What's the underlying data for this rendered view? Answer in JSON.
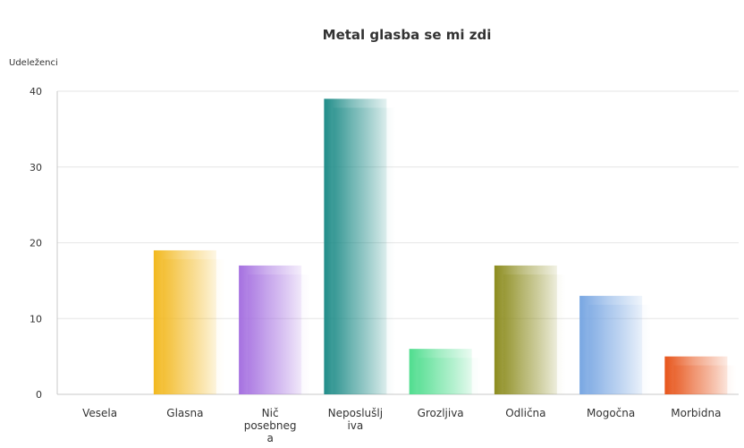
{
  "chart_data": {
    "type": "bar",
    "title": "Metal glasba se mi zdi",
    "ylabel": "Udeleženci",
    "xlabel": "",
    "ylim": [
      0,
      40
    ],
    "yticks": [
      0,
      10,
      20,
      30,
      40
    ],
    "grid": true,
    "legend": "none",
    "categories": [
      {
        "lines": [
          "Vesela"
        ]
      },
      {
        "lines": [
          "Glasna"
        ]
      },
      {
        "lines": [
          "Nič",
          "posebneg",
          "a"
        ]
      },
      {
        "lines": [
          "Neposlušlj",
          "iva"
        ]
      },
      {
        "lines": [
          "Grozljiva"
        ]
      },
      {
        "lines": [
          "Odlična"
        ]
      },
      {
        "lines": [
          "Mogočna"
        ]
      },
      {
        "lines": [
          "Morbidna"
        ]
      }
    ],
    "values": [
      0,
      19,
      17,
      39,
      6,
      17,
      13,
      5
    ],
    "colors": [
      "#999999",
      "#f2b81e",
      "#a570e0",
      "#1f8c88",
      "#4fdd8e",
      "#8c8c1e",
      "#78a6e2",
      "#e7541a"
    ]
  }
}
